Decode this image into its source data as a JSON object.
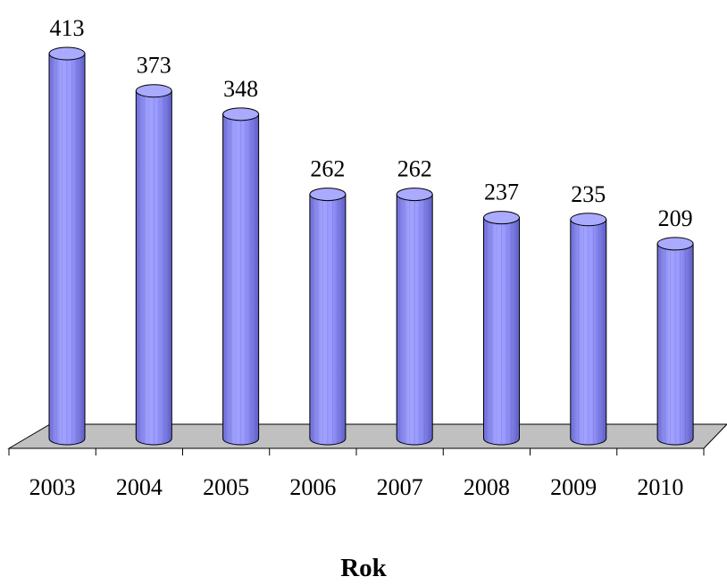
{
  "chart_data": {
    "type": "bar",
    "style": "3d-cylinder",
    "categories": [
      "2003",
      "2004",
      "2005",
      "2006",
      "2007",
      "2008",
      "2009",
      "2010"
    ],
    "values": [
      413,
      373,
      348,
      262,
      262,
      237,
      235,
      209
    ],
    "xlabel": "Rok",
    "ylim": [
      0,
      413
    ],
    "grid": false,
    "legend": "none",
    "data_labels": true,
    "colors": {
      "bar_body": "#9999ff",
      "bar_top": "#aaaaff",
      "floor": "#c0c0c0",
      "outline": "#000000"
    }
  }
}
